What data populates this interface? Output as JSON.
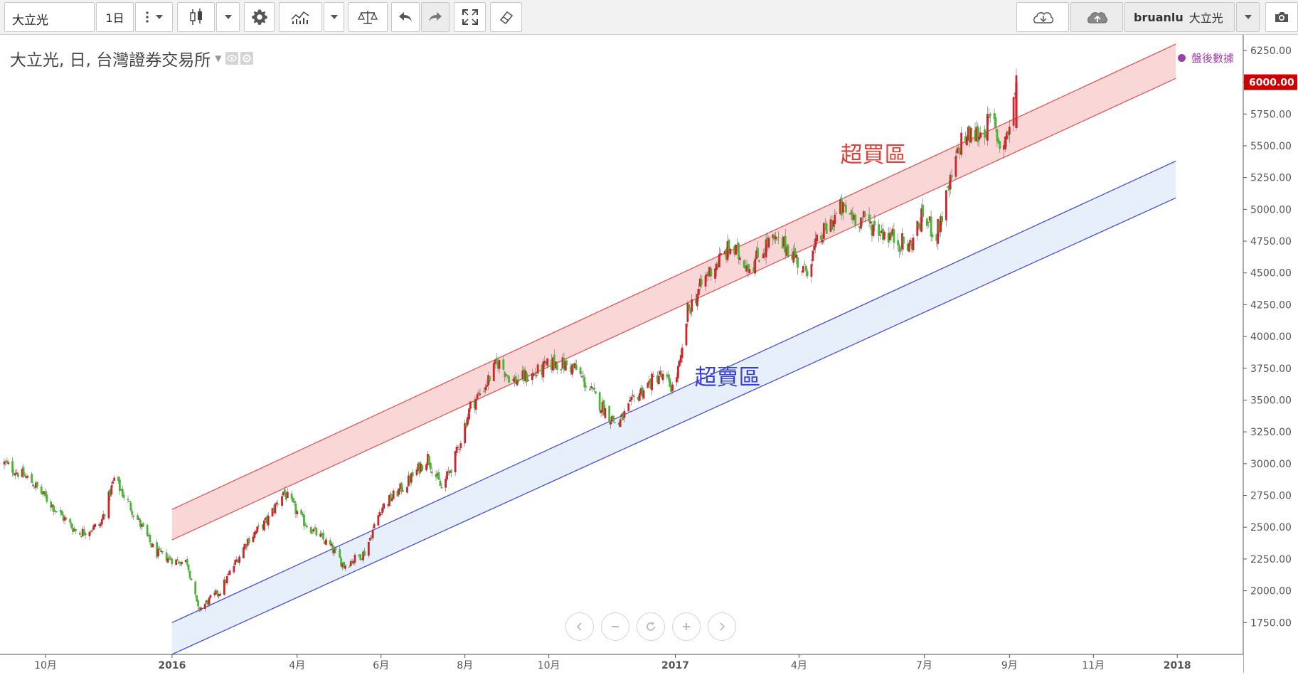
{
  "toolbar": {
    "symbol": "大立光",
    "interval": "1日",
    "user": "bruanlu",
    "user_symbol": "大立光"
  },
  "legend": {
    "title": "大立光, 日, 台灣證券交易所"
  },
  "after_hours": "盤後數據",
  "annotations": {
    "overbought": "超買區",
    "oversold": "超賣區"
  },
  "colors": {
    "up": "#d1232a",
    "down": "#44b82e",
    "overbought_band": "#f7c6c6",
    "overbought_line": "#e25a5a",
    "oversold_band": "#dbe8f8",
    "oversold_line": "#4a4ee0",
    "last_price_tag": "#cc0000"
  },
  "icons": [
    "chevron-down-icon",
    "candles-icon",
    "gear-icon",
    "indicators-icon",
    "compare-icon",
    "undo-icon",
    "redo-icon",
    "fullscreen-icon",
    "eraser-icon",
    "cloud-download-icon",
    "cloud-upload-icon",
    "camera-icon",
    "scroll-left-icon",
    "zoom-out-icon",
    "reset-icon",
    "zoom-in-icon",
    "scroll-right-icon"
  ],
  "chart_data": {
    "type": "candlestick",
    "title": "大立光, 日, 台灣證券交易所",
    "price_axis": {
      "min": 1500,
      "max": 6350,
      "ticks": [
        1750,
        2000,
        2250,
        2500,
        2750,
        3000,
        3250,
        3500,
        3750,
        4000,
        4250,
        4500,
        4750,
        5000,
        5250,
        5500,
        5750,
        6000,
        6250
      ],
      "tick_labels": [
        "1750.00",
        "2000.00",
        "2250.00",
        "2500.00",
        "2750.00",
        "3000.00",
        "3250.00",
        "3500.00",
        "3750.00",
        "4000.00",
        "4250.00",
        "4500.00",
        "4750.00",
        "5000.00",
        "5250.00",
        "5500.00",
        "5750.00",
        "6000.00",
        "6250.00"
      ],
      "last_price": 6000,
      "last_price_label": "6000.00"
    },
    "time_axis": {
      "ticks": [
        "2015-10-01",
        "2016-01-01",
        "2016-04-01",
        "2016-06-01",
        "2016-08-01",
        "2016-10-01",
        "2017-01-01",
        "2017-04-01",
        "2017-07-01",
        "2017-09-01",
        "2017-11-01",
        "2018-01-01"
      ],
      "tick_labels": [
        "10月",
        "2016",
        "4月",
        "6月",
        "8月",
        "10月",
        "2017",
        "4月",
        "7月",
        "9月",
        "11月",
        "2018"
      ]
    },
    "price_path": [
      [
        "2015-09-01",
        3000
      ],
      [
        "2015-09-20",
        2870
      ],
      [
        "2015-10-10",
        2620
      ],
      [
        "2015-10-25",
        2450
      ],
      [
        "2015-11-10",
        2520
      ],
      [
        "2015-11-20",
        2880
      ],
      [
        "2015-12-05",
        2600
      ],
      [
        "2015-12-20",
        2300
      ],
      [
        "2016-01-05",
        2230
      ],
      [
        "2016-01-12",
        2230
      ],
      [
        "2016-01-20",
        1850
      ],
      [
        "2016-02-05",
        2000
      ],
      [
        "2016-02-25",
        2400
      ],
      [
        "2016-03-10",
        2550
      ],
      [
        "2016-03-22",
        2780
      ],
      [
        "2016-04-05",
        2550
      ],
      [
        "2016-04-25",
        2350
      ],
      [
        "2016-05-05",
        2200
      ],
      [
        "2016-05-20",
        2300
      ],
      [
        "2016-06-01",
        2650
      ],
      [
        "2016-06-20",
        2850
      ],
      [
        "2016-07-05",
        3050
      ],
      [
        "2016-07-15",
        2800
      ],
      [
        "2016-07-25",
        3050
      ],
      [
        "2016-08-05",
        3450
      ],
      [
        "2016-08-15",
        3600
      ],
      [
        "2016-08-25",
        3800
      ],
      [
        "2016-09-05",
        3650
      ],
      [
        "2016-09-20",
        3700
      ],
      [
        "2016-10-05",
        3800
      ],
      [
        "2016-10-20",
        3750
      ],
      [
        "2016-11-05",
        3500
      ],
      [
        "2016-11-20",
        3300
      ],
      [
        "2016-12-05",
        3550
      ],
      [
        "2016-12-20",
        3700
      ],
      [
        "2016-12-30",
        3600
      ],
      [
        "2017-01-05",
        3800
      ],
      [
        "2017-01-10",
        4200
      ],
      [
        "2017-01-25",
        4500
      ],
      [
        "2017-02-10",
        4700
      ],
      [
        "2017-02-25",
        4550
      ],
      [
        "2017-03-10",
        4750
      ],
      [
        "2017-03-25",
        4700
      ],
      [
        "2017-04-05",
        4500
      ],
      [
        "2017-04-15",
        4750
      ],
      [
        "2017-05-01",
        5000
      ],
      [
        "2017-05-20",
        4900
      ],
      [
        "2017-06-05",
        4800
      ],
      [
        "2017-06-20",
        4700
      ],
      [
        "2017-06-30",
        4950
      ],
      [
        "2017-07-10",
        4800
      ],
      [
        "2017-07-20",
        5200
      ],
      [
        "2017-07-28",
        5550
      ],
      [
        "2017-08-10",
        5600
      ],
      [
        "2017-08-20",
        5700
      ],
      [
        "2017-08-25",
        5500
      ],
      [
        "2017-08-31",
        5600
      ],
      [
        "2017-09-06",
        6000
      ]
    ],
    "channels": [
      {
        "name": "超買區",
        "upper": [
          [
            "2016-01-01",
            2640
          ],
          [
            "2017-12-31",
            6300
          ]
        ],
        "lower": [
          [
            "2016-01-01",
            2400
          ],
          [
            "2017-12-31",
            6030
          ]
        ]
      },
      {
        "name": "超賣區",
        "upper": [
          [
            "2016-01-01",
            1750
          ],
          [
            "2017-12-31",
            5380
          ]
        ],
        "lower": [
          [
            "2016-01-01",
            1500
          ],
          [
            "2017-12-31",
            5090
          ]
        ]
      }
    ],
    "grid": false,
    "legend": "top-left"
  }
}
